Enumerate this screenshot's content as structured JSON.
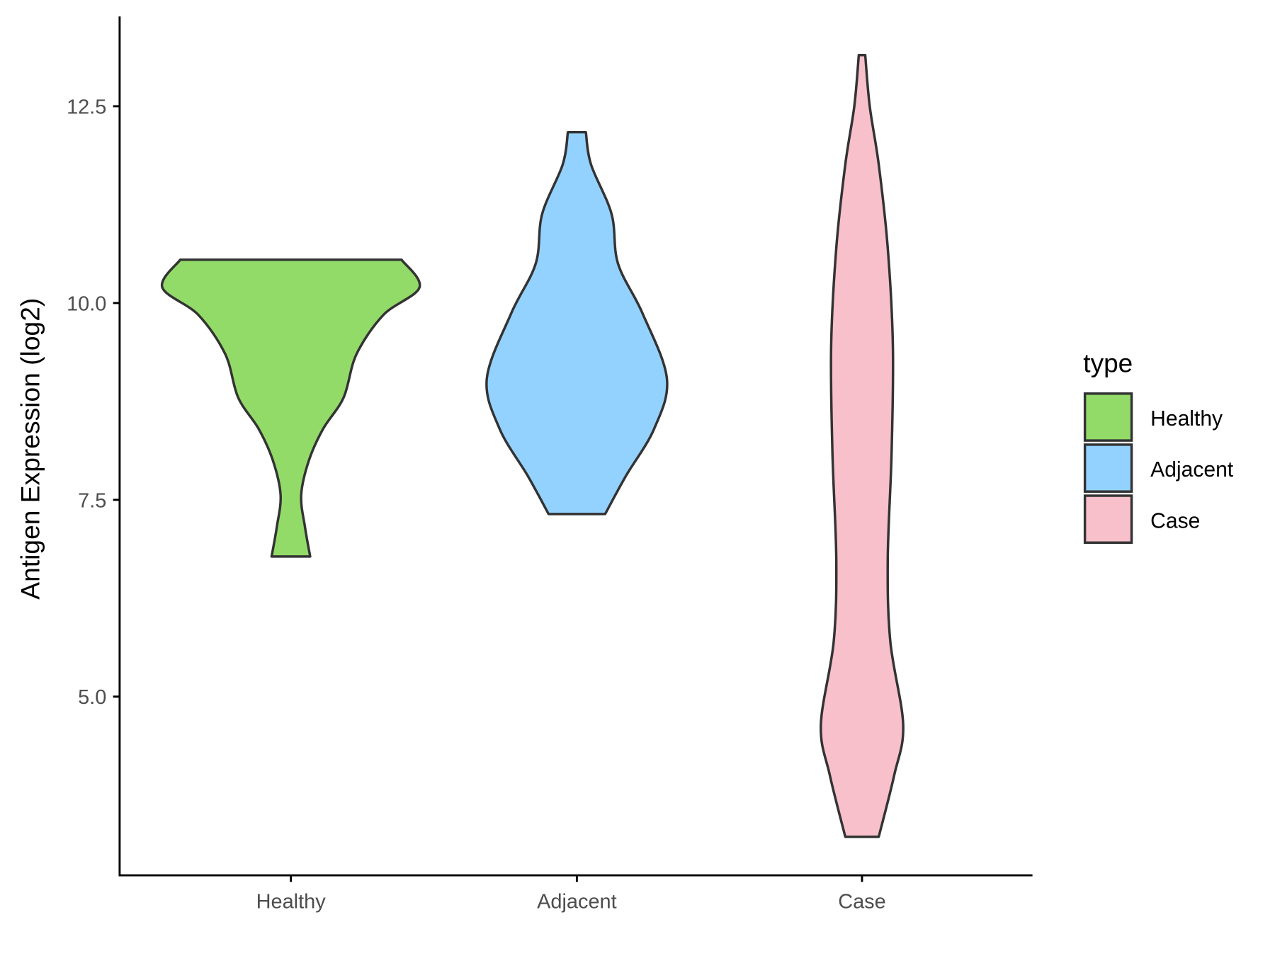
{
  "chart_data": {
    "type": "violin",
    "title": "",
    "xlabel": "",
    "ylabel": "Antigen Expression (log2)",
    "ylim": [
      2.4,
      13.5
    ],
    "yticks": [
      "5.0",
      "7.5",
      "10.0",
      "12.5"
    ],
    "ytick_values": [
      5.0,
      7.5,
      10.0,
      12.5
    ],
    "categories": [
      "Healthy",
      "Adjacent",
      "Case"
    ],
    "grid": false,
    "legend": {
      "title": "type",
      "position": "right",
      "entries": [
        "Healthy",
        "Adjacent",
        "Case"
      ]
    },
    "colors": {
      "Healthy": "#93DB69",
      "Adjacent": "#93D2FE",
      "Case": "#F7C0CB",
      "outline": "#333333"
    },
    "series": [
      {
        "name": "Healthy",
        "min": 6.78,
        "max": 10.55,
        "profile": [
          [
            6.78,
            0.15
          ],
          [
            7.15,
            0.11
          ],
          [
            7.56,
            0.08
          ],
          [
            8.0,
            0.14
          ],
          [
            8.4,
            0.25
          ],
          [
            8.8,
            0.41
          ],
          [
            9.35,
            0.51
          ],
          [
            9.85,
            0.72
          ],
          [
            10.2,
            1.0
          ],
          [
            10.55,
            0.86
          ]
        ]
      },
      {
        "name": "Adjacent",
        "min": 7.32,
        "max": 12.17,
        "profile": [
          [
            7.32,
            0.22
          ],
          [
            7.8,
            0.38
          ],
          [
            8.4,
            0.6
          ],
          [
            9.04,
            0.7
          ],
          [
            9.87,
            0.51
          ],
          [
            10.5,
            0.32
          ],
          [
            11.13,
            0.27
          ],
          [
            11.76,
            0.11
          ],
          [
            12.17,
            0.07
          ]
        ]
      },
      {
        "name": "Case",
        "min": 3.22,
        "max": 13.15,
        "profile": [
          [
            3.22,
            0.13
          ],
          [
            4.0,
            0.25
          ],
          [
            4.64,
            0.32
          ],
          [
            5.7,
            0.22
          ],
          [
            6.74,
            0.2
          ],
          [
            8.1,
            0.23
          ],
          [
            9.45,
            0.24
          ],
          [
            10.7,
            0.2
          ],
          [
            11.76,
            0.13
          ],
          [
            12.5,
            0.06
          ],
          [
            13.15,
            0.025
          ]
        ]
      }
    ]
  }
}
